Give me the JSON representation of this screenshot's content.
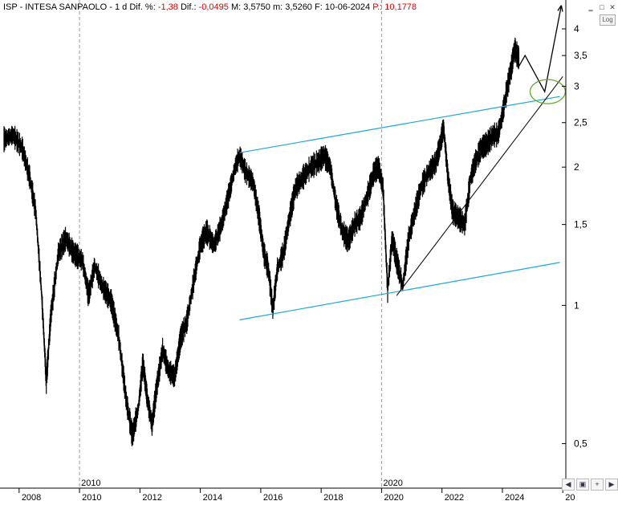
{
  "header": {
    "symbol": "ISP - INTESA SANPAOLO",
    "period": "1 d",
    "diff_pct_label": "Dif. %:",
    "diff_pct_value": "-1,38",
    "diff_label": "Dif.:",
    "diff_value": "-0,0495",
    "max_label": "M:",
    "max_value": "3,5750",
    "min_label": "m:",
    "min_value": "3,5260",
    "date_label": "F:",
    "date_value": "10-06-2024",
    "price_label": "P.:",
    "price_value": "10,1778"
  },
  "controls": {
    "log_label": "Log",
    "scroll_left": "◀",
    "scroll_right": "▶"
  },
  "chart_data": {
    "type": "line",
    "scale": "log",
    "ylim": [
      0.4,
      4.3
    ],
    "y_ticks": [
      "4",
      "3,5",
      "3",
      "2,5",
      "2",
      "1,5",
      "1",
      "0,5"
    ],
    "x_ticks": [
      "2008",
      "2010",
      "2012",
      "2014",
      "2016",
      "2018",
      "2020",
      "2022",
      "2024",
      "20"
    ],
    "x_range": [
      2007.5,
      2026.1
    ],
    "upper_markers": [
      "2010",
      "2020"
    ],
    "series": [
      {
        "points": [
          [
            2007.5,
            2.3
          ],
          [
            2007.8,
            2.35
          ],
          [
            2008.1,
            2.2
          ],
          [
            2008.35,
            1.9
          ],
          [
            2008.55,
            1.6
          ],
          [
            2008.75,
            1.05
          ],
          [
            2008.9,
            0.68
          ],
          [
            2009.05,
            0.95
          ],
          [
            2009.3,
            1.3
          ],
          [
            2009.55,
            1.4
          ],
          [
            2009.8,
            1.3
          ],
          [
            2010.1,
            1.25
          ],
          [
            2010.3,
            1.05
          ],
          [
            2010.5,
            1.22
          ],
          [
            2010.75,
            1.1
          ],
          [
            2011.05,
            1.02
          ],
          [
            2011.3,
            0.85
          ],
          [
            2011.55,
            0.62
          ],
          [
            2011.75,
            0.52
          ],
          [
            2011.95,
            0.6
          ],
          [
            2012.1,
            0.75
          ],
          [
            2012.25,
            0.62
          ],
          [
            2012.4,
            0.55
          ],
          [
            2012.55,
            0.66
          ],
          [
            2012.75,
            0.8
          ],
          [
            2012.95,
            0.72
          ],
          [
            2013.15,
            0.7
          ],
          [
            2013.35,
            0.85
          ],
          [
            2013.55,
            0.92
          ],
          [
            2013.8,
            1.15
          ],
          [
            2014.0,
            1.35
          ],
          [
            2014.2,
            1.45
          ],
          [
            2014.45,
            1.35
          ],
          [
            2014.7,
            1.5
          ],
          [
            2014.95,
            1.75
          ],
          [
            2015.15,
            2.0
          ],
          [
            2015.3,
            2.12
          ],
          [
            2015.5,
            1.95
          ],
          [
            2015.75,
            1.85
          ],
          [
            2015.95,
            1.55
          ],
          [
            2016.1,
            1.3
          ],
          [
            2016.25,
            1.2
          ],
          [
            2016.4,
            0.98
          ],
          [
            2016.55,
            1.2
          ],
          [
            2016.75,
            1.3
          ],
          [
            2016.95,
            1.55
          ],
          [
            2017.15,
            1.8
          ],
          [
            2017.4,
            1.9
          ],
          [
            2017.65,
            2.0
          ],
          [
            2017.9,
            2.05
          ],
          [
            2018.1,
            2.12
          ],
          [
            2018.3,
            2.0
          ],
          [
            2018.5,
            1.65
          ],
          [
            2018.7,
            1.45
          ],
          [
            2018.9,
            1.38
          ],
          [
            2019.1,
            1.5
          ],
          [
            2019.3,
            1.55
          ],
          [
            2019.55,
            1.75
          ],
          [
            2019.75,
            1.95
          ],
          [
            2019.9,
            2.0
          ],
          [
            2020.05,
            1.8
          ],
          [
            2020.2,
            1.08
          ],
          [
            2020.35,
            1.4
          ],
          [
            2020.5,
            1.25
          ],
          [
            2020.7,
            1.1
          ],
          [
            2020.9,
            1.4
          ],
          [
            2021.1,
            1.6
          ],
          [
            2021.3,
            1.8
          ],
          [
            2021.55,
            1.95
          ],
          [
            2021.8,
            2.05
          ],
          [
            2021.95,
            2.25
          ],
          [
            2022.05,
            2.45
          ],
          [
            2022.2,
            1.9
          ],
          [
            2022.35,
            1.6
          ],
          [
            2022.55,
            1.55
          ],
          [
            2022.75,
            1.5
          ],
          [
            2022.95,
            1.9
          ],
          [
            2023.1,
            2.05
          ],
          [
            2023.3,
            2.2
          ],
          [
            2023.5,
            2.25
          ],
          [
            2023.7,
            2.35
          ],
          [
            2023.85,
            2.35
          ],
          [
            2024.0,
            2.6
          ],
          [
            2024.15,
            2.95
          ],
          [
            2024.3,
            3.3
          ],
          [
            2024.4,
            3.62
          ],
          [
            2024.5,
            3.5
          ],
          [
            2024.55,
            3.45
          ]
        ]
      }
    ],
    "drawings": {
      "channel_upper": [
        [
          2015.3,
          2.15
        ],
        [
          2025.9,
          2.85
        ]
      ],
      "channel_lower": [
        [
          2015.3,
          0.93
        ],
        [
          2025.9,
          1.24
        ]
      ],
      "trendline": [
        [
          2020.5,
          1.05
        ],
        [
          2026.0,
          3.15
        ]
      ],
      "projection": [
        [
          2024.45,
          3.6
        ],
        [
          2024.55,
          3.32
        ],
        [
          2024.75,
          3.5
        ],
        [
          2025.4,
          2.92
        ],
        [
          2025.95,
          4.5
        ]
      ],
      "target_ellipse_center": [
        2025.5,
        2.92
      ]
    }
  }
}
